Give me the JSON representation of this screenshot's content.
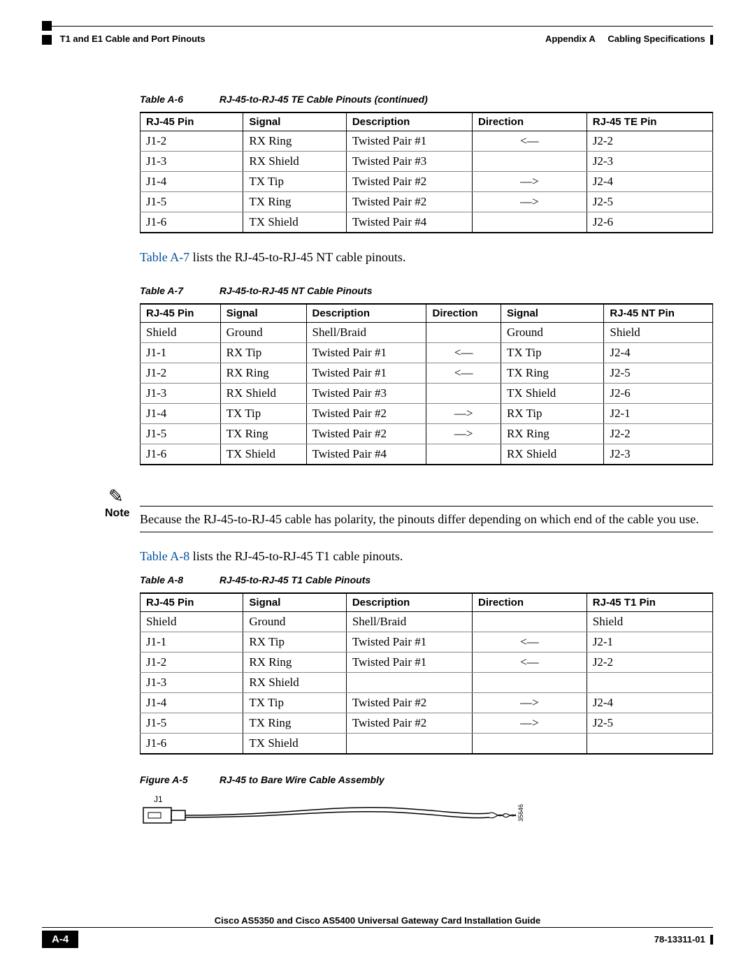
{
  "header": {
    "appendix": "Appendix A",
    "appendix_title": "Cabling Specifications",
    "section": "T1 and E1 Cable and Port Pinouts"
  },
  "table_a6": {
    "caption_num": "Table A-6",
    "caption_title": "RJ-45-to-RJ-45 TE Cable Pinouts (continued)",
    "columns": [
      "RJ-45 Pin",
      "Signal",
      "Description",
      "Direction",
      "RJ-45 TE Pin"
    ],
    "col_widths": [
      "18%",
      "18%",
      "22%",
      "20%",
      "22%"
    ],
    "rows": [
      [
        "J1-2",
        "RX Ring",
        "Twisted Pair #1",
        "<—",
        "J2-2"
      ],
      [
        "J1-3",
        "RX Shield",
        "Twisted Pair #3",
        "",
        "J2-3"
      ],
      [
        "J1-4",
        "TX Tip",
        "Twisted Pair #2",
        "—>",
        "J2-4"
      ],
      [
        "J1-5",
        "TX Ring",
        "Twisted Pair #2",
        "—>",
        "J2-5"
      ],
      [
        "J1-6",
        "TX Shield",
        "Twisted Pair #4",
        "",
        "J2-6"
      ]
    ]
  },
  "para1_link": "Table A-7",
  "para1_rest": " lists the RJ-45-to-RJ-45 NT cable pinouts.",
  "table_a7": {
    "caption_num": "Table A-7",
    "caption_title": "RJ-45-to-RJ-45 NT Cable Pinouts",
    "columns": [
      "RJ-45 Pin",
      "Signal",
      "Description",
      "Direction",
      "Signal",
      "RJ-45 NT Pin"
    ],
    "col_widths": [
      "14%",
      "15%",
      "21%",
      "13%",
      "18%",
      "19%"
    ],
    "rows": [
      [
        "Shield",
        "Ground",
        "Shell/Braid",
        "",
        "Ground",
        "Shield"
      ],
      [
        "J1-1",
        "RX Tip",
        "Twisted Pair #1",
        "<—",
        "TX Tip",
        "J2-4"
      ],
      [
        "J1-2",
        "RX Ring",
        "Twisted Pair #1",
        "<—",
        "TX Ring",
        "J2-5"
      ],
      [
        "J1-3",
        "RX Shield",
        "Twisted Pair #3",
        "",
        "TX Shield",
        "J2-6"
      ],
      [
        "J1-4",
        "TX Tip",
        "Twisted Pair #2",
        "—>",
        "RX Tip",
        "J2-1"
      ],
      [
        "J1-5",
        "TX Ring",
        "Twisted Pair #2",
        "—>",
        "RX Ring",
        "J2-2"
      ],
      [
        "J1-6",
        "TX Shield",
        "Twisted Pair #4",
        "",
        "RX Shield",
        "J2-3"
      ]
    ]
  },
  "note": {
    "label": "Note",
    "text": "Because the RJ-45-to-RJ-45 cable has polarity, the pinouts differ depending on which end of the cable you use."
  },
  "para2_link": "Table A-8",
  "para2_rest": " lists the RJ-45-to-RJ-45 T1 cable pinouts.",
  "table_a8": {
    "caption_num": "Table A-8",
    "caption_title": "RJ-45-to-RJ-45 T1 Cable Pinouts",
    "columns": [
      "RJ-45 Pin",
      "Signal",
      "Description",
      "Direction",
      "RJ-45 T1 Pin"
    ],
    "col_widths": [
      "18%",
      "18%",
      "22%",
      "20%",
      "22%"
    ],
    "rows": [
      [
        "Shield",
        "Ground",
        "Shell/Braid",
        "",
        "Shield"
      ],
      [
        "J1-1",
        "RX Tip",
        "Twisted Pair #1",
        "<—",
        "J2-1"
      ],
      [
        "J1-2",
        "RX Ring",
        "Twisted Pair #1",
        "<—",
        "J2-2"
      ],
      [
        "J1-3",
        "RX Shield",
        "",
        "",
        ""
      ],
      [
        "J1-4",
        "TX Tip",
        "Twisted Pair #2",
        "—>",
        "J2-4"
      ],
      [
        "J1-5",
        "TX Ring",
        "Twisted Pair #2",
        "—>",
        "J2-5"
      ],
      [
        "J1-6",
        "TX Shield",
        "",
        "",
        ""
      ]
    ]
  },
  "figure_a5": {
    "caption_num": "Figure A-5",
    "caption_title": "RJ-45 to Bare Wire Cable Assembly",
    "j1_label": "J1",
    "part_label": "35646"
  },
  "footer": {
    "title": "Cisco AS5350 and Cisco AS5400 Universal Gateway Card Installation Guide",
    "page": "A-4",
    "docnum": "78-13311-01"
  }
}
